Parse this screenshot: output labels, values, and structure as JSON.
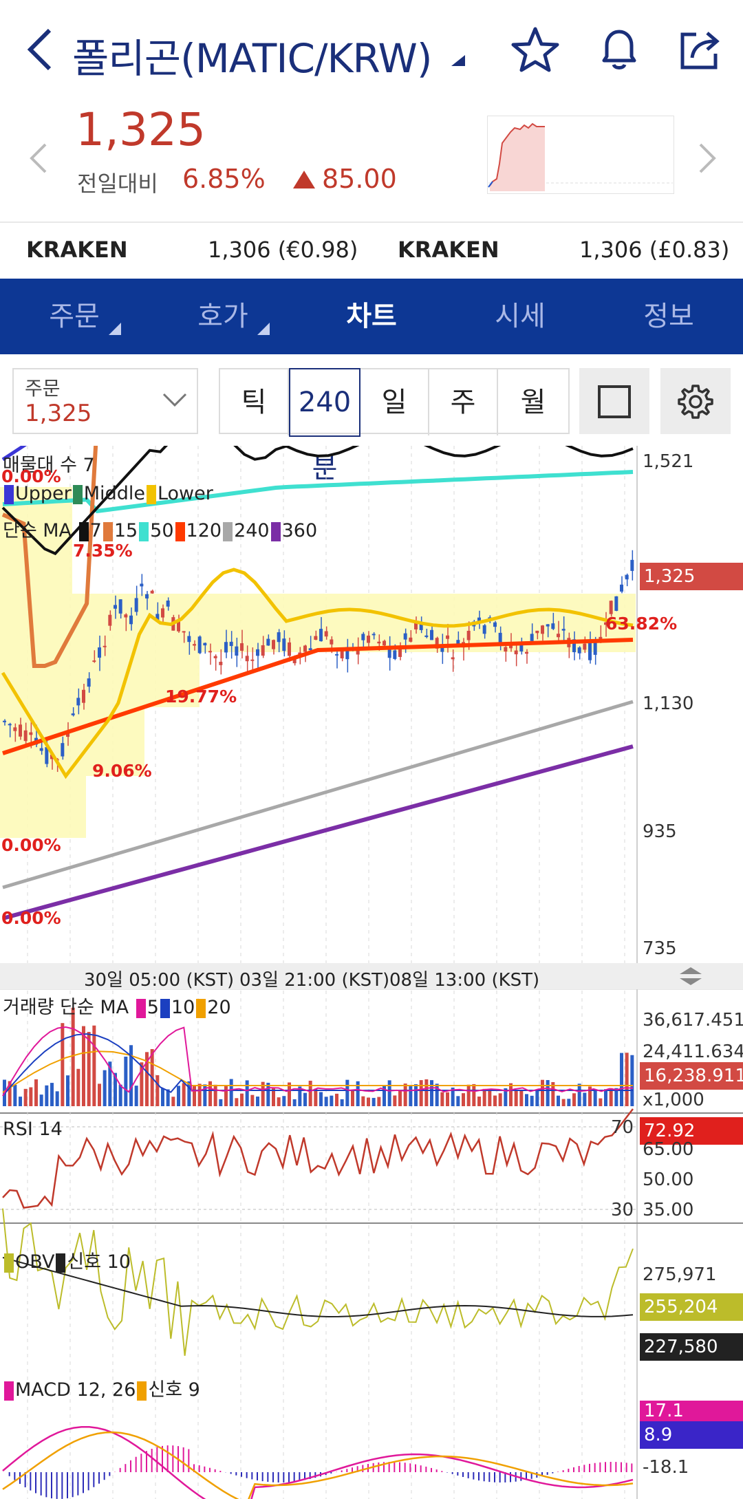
{
  "header": {
    "title": "폴리곤(MATIC/KRW)",
    "back_icon": "chevron-left-icon",
    "icons": [
      "star-icon",
      "bell-icon",
      "share-icon"
    ]
  },
  "price": {
    "current": "1,325",
    "change_label": "전일대비",
    "change_pct": "6.85%",
    "change_abs": "85.00",
    "color_up": "#c0392b"
  },
  "exchanges": [
    {
      "name": "KRAKEN",
      "value": "1,306 (€0.98)"
    },
    {
      "name": "KRAKEN",
      "value": "1,306 (£0.83)"
    }
  ],
  "tabs": [
    {
      "label": "주문",
      "has_menu": true
    },
    {
      "label": "호가",
      "has_menu": true
    },
    {
      "label": "차트",
      "active": true
    },
    {
      "label": "시세"
    },
    {
      "label": "정보"
    }
  ],
  "toolbar": {
    "order_label": "주문",
    "order_value": "1,325",
    "periods": [
      "틱",
      "240분",
      "일",
      "주",
      "월"
    ],
    "selected_period": "240분"
  },
  "chart": {
    "price_axis": [
      "1,521",
      "1,130",
      "935",
      "735"
    ],
    "current_price_badge": "1,325",
    "volume_profile_label": "매물대 수 7",
    "bollinger_legend": [
      "Upper",
      "Middle",
      "Lower"
    ],
    "ma_legend_label": "단순 MA",
    "ma_periods": [
      "7",
      "15",
      "50",
      "120",
      "240",
      "360"
    ],
    "profile_pcts": [
      "0.00%",
      "7.35%",
      "19.77%",
      "9.06%",
      "0.00%",
      "0.00%",
      "63.82%"
    ],
    "time_labels": [
      "30일 05:00 (KST)",
      "03일 21:00 (KST)",
      "08일 13:00 (KST)"
    ],
    "volume": {
      "label": "거래량 단순 MA",
      "periods": [
        "5",
        "10",
        "20"
      ],
      "axis": [
        "36,617.451",
        "24,411.634"
      ],
      "badge": "16,238.911",
      "unit": "x1,000"
    },
    "rsi": {
      "label": "RSI 14",
      "badge": "72.92",
      "axis": [
        "65.00",
        "50.00",
        "35.00"
      ],
      "upper_line": "70",
      "lower_line": "30"
    },
    "obv": {
      "label": "OBV",
      "signal": "신호 10",
      "axis": [
        "275,971"
      ],
      "badge1": "255,204",
      "badge2": "227,580"
    },
    "macd": {
      "label": "MACD 12, 26",
      "signal": "신호 9",
      "axis": [
        "-18.1"
      ],
      "badge1": "17.1",
      "badge2": "8.9"
    }
  },
  "colors": {
    "navy": "#0d3794",
    "red": "#e0201d",
    "upper": "#3b36d6",
    "middle": "#2e8b57",
    "lower": "#f2c200",
    "ma7": "#111111",
    "ma15": "#e07a3c",
    "ma50": "#3fe0d0",
    "ma120": "#ff3a00",
    "ma240": "#a8a8a8",
    "ma360": "#7b2ea6"
  }
}
